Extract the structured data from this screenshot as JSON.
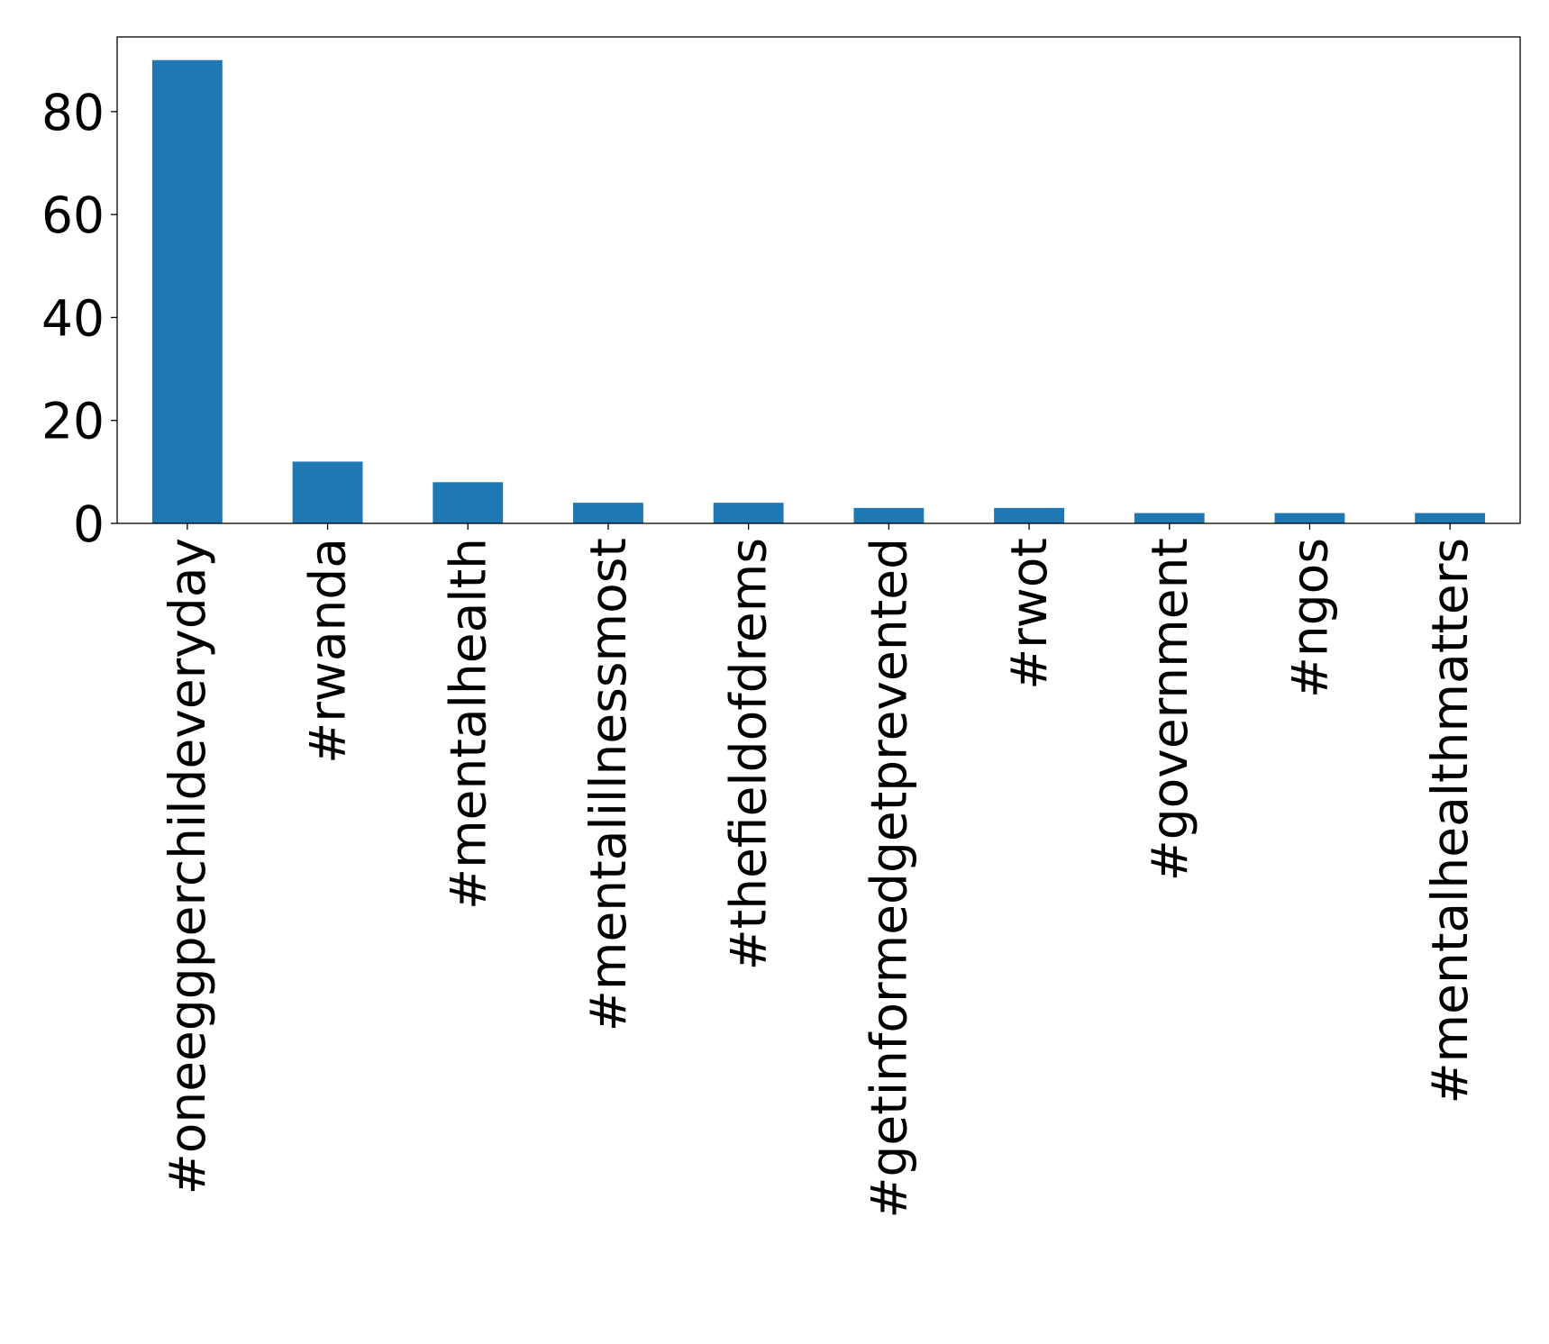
{
  "chart_data": {
    "type": "bar",
    "categories": [
      "#oneeggperchildeveryday",
      "#rwanda",
      "#mentalhealth",
      "#mentalillnessmost",
      "#thefieldofdrems",
      "#getinformedgetprevented",
      "#rwot",
      "#government",
      "#ngos",
      "#mentalhealthmatters"
    ],
    "values": [
      90,
      12,
      8,
      4,
      4,
      3,
      3,
      2,
      2,
      2
    ],
    "ylim": [
      0,
      94.5
    ],
    "yticks": [
      0,
      20,
      40,
      60,
      80
    ],
    "title": "",
    "xlabel": "",
    "ylabel": "",
    "bar_color": "#1f77b4",
    "grid": false,
    "legend": "none"
  }
}
